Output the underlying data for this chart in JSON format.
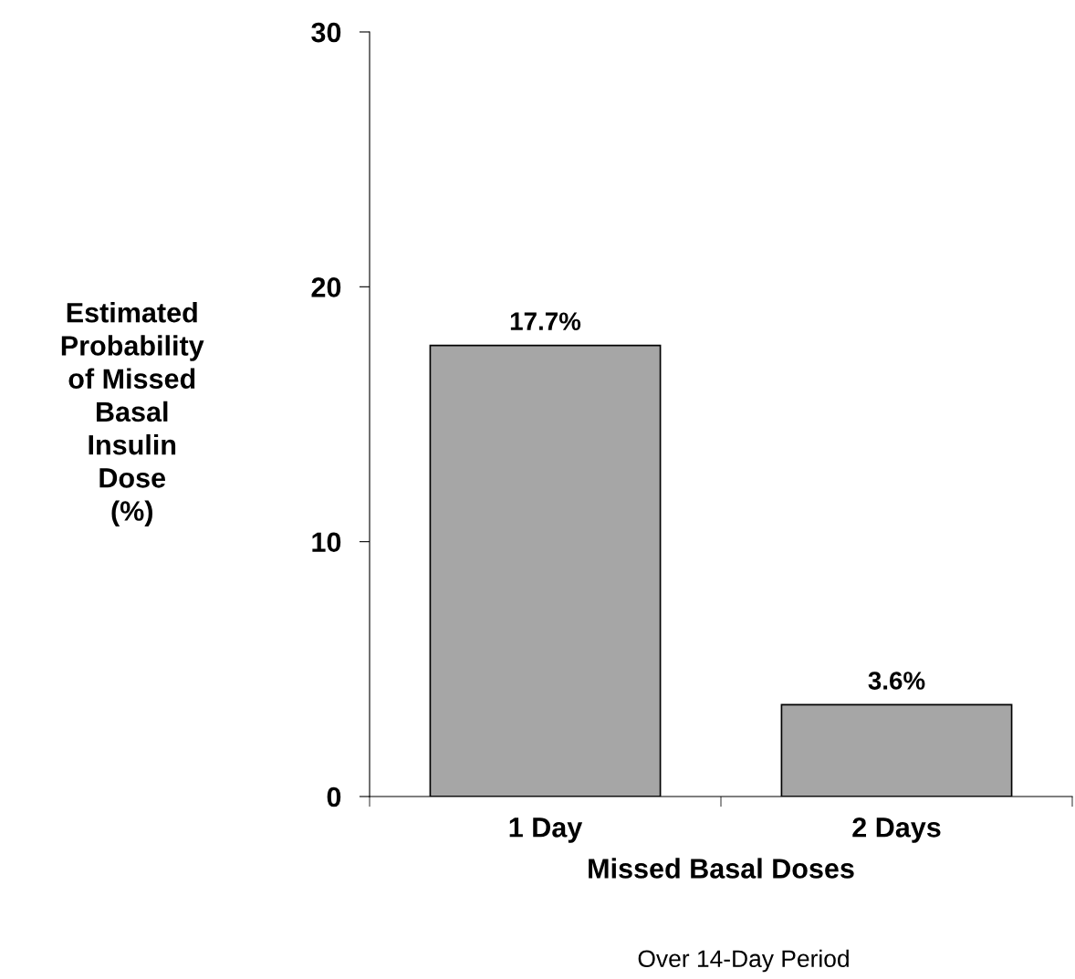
{
  "chart_data": {
    "type": "bar",
    "categories": [
      "1 Day",
      "2 Days"
    ],
    "values": [
      17.7,
      3.6
    ],
    "value_labels": [
      "17.7%",
      "3.6%"
    ],
    "color": "#a6a6a6",
    "ylabel": "Estimated\nProbability\nof Missed\nBasal\nInsulin\nDose\n(%)",
    "xlabel": "Missed Basal Doses",
    "annotations": [
      "Over 14-Day Period"
    ],
    "ylim": [
      0,
      30
    ],
    "yticks": [
      0,
      10,
      20,
      30
    ],
    "grid": false,
    "legend": false
  }
}
